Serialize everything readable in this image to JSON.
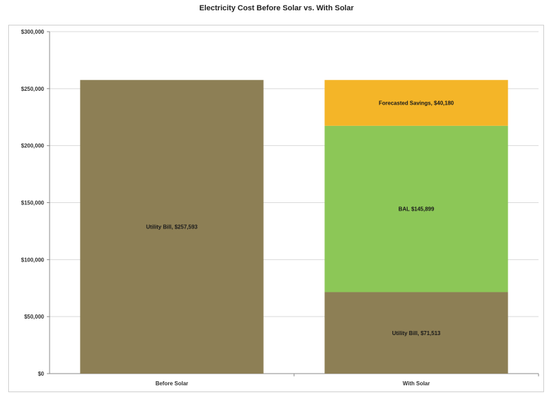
{
  "chart_data": {
    "type": "bar",
    "stacked": true,
    "title": "Electricity Cost Before Solar vs. With Solar",
    "categories": [
      "Before Solar",
      "With Solar"
    ],
    "ylim": [
      0,
      300000
    ],
    "yticks": [
      0,
      50000,
      100000,
      150000,
      200000,
      250000,
      300000
    ],
    "ytick_labels": [
      "$0",
      "$50,000",
      "$100,000",
      "$150,000",
      "$200,000",
      "$250,000",
      "$300,000"
    ],
    "grid": true,
    "segments": [
      {
        "category": "Before Solar",
        "value": 257593,
        "color": "#8d7f55",
        "label": "Utility Bill, $257,593"
      },
      {
        "category": "With Solar",
        "value": 71513,
        "color": "#8d7f55",
        "label": "Utility Bill, $71,513"
      },
      {
        "category": "With Solar",
        "value": 145899,
        "color": "#8cc757",
        "label": "BAL $145,899"
      },
      {
        "category": "With Solar",
        "value": 40180,
        "color": "#f4b528",
        "label": "Forecasted Savings, $40,180"
      }
    ]
  }
}
